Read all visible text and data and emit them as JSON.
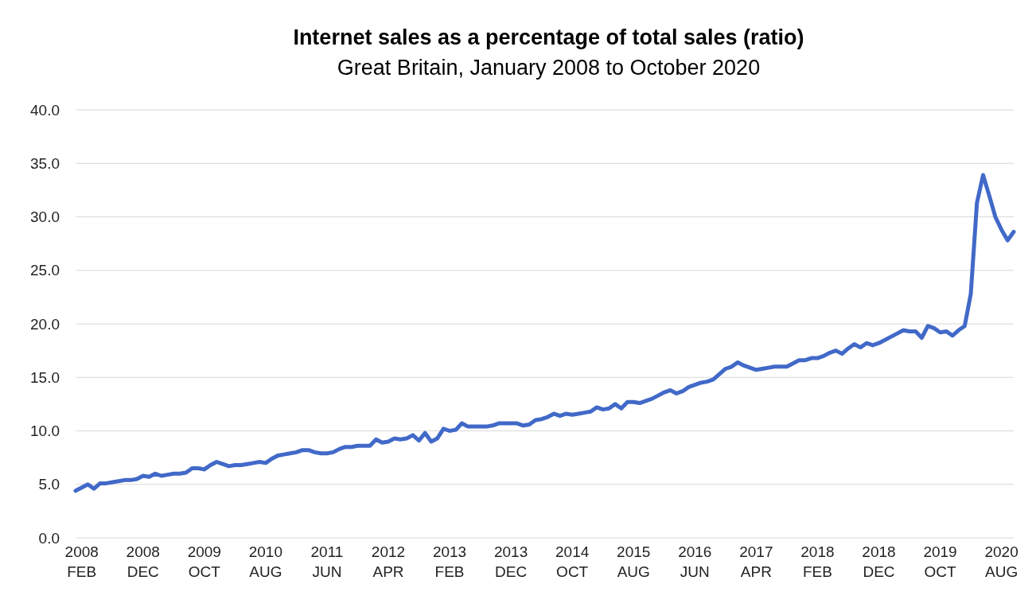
{
  "chart_data": {
    "type": "line",
    "title": "Internet sales as a percentage of total sales (ratio)",
    "subtitle": "Great Britain, January 2008 to October 2020",
    "categories": [
      null,
      "2008 FEB",
      null,
      null,
      null,
      null,
      null,
      null,
      null,
      null,
      null,
      "2008 DEC",
      null,
      null,
      null,
      null,
      null,
      null,
      null,
      null,
      null,
      "2009 OCT",
      null,
      null,
      null,
      null,
      null,
      null,
      null,
      null,
      null,
      "2010 AUG",
      null,
      null,
      null,
      null,
      null,
      null,
      null,
      null,
      null,
      "2011 JUN",
      null,
      null,
      null,
      null,
      null,
      null,
      null,
      null,
      null,
      "2012 APR",
      null,
      null,
      null,
      null,
      null,
      null,
      null,
      null,
      null,
      "2013 FEB",
      null,
      null,
      null,
      null,
      null,
      null,
      null,
      null,
      null,
      "2013 DEC",
      null,
      null,
      null,
      null,
      null,
      null,
      null,
      null,
      null,
      "2014 OCT",
      null,
      null,
      null,
      null,
      null,
      null,
      null,
      null,
      null,
      "2015 AUG",
      null,
      null,
      null,
      null,
      null,
      null,
      null,
      null,
      null,
      "2016 JUN",
      null,
      null,
      null,
      null,
      null,
      null,
      null,
      null,
      null,
      "2017 APR",
      null,
      null,
      null,
      null,
      null,
      null,
      null,
      null,
      null,
      "2018 FEB",
      null,
      null,
      null,
      null,
      null,
      null,
      null,
      null,
      null,
      "2018 DEC",
      null,
      null,
      null,
      null,
      null,
      null,
      null,
      null,
      null,
      "2019 OCT",
      null,
      null,
      null,
      null,
      null,
      null,
      null,
      null,
      null,
      "2020 AUG",
      null,
      null
    ],
    "series": [
      {
        "color": "#4169c8",
        "values": [
          4.4,
          4.7,
          5.0,
          4.6,
          5.1,
          5.1,
          5.2,
          5.3,
          5.4,
          5.4,
          5.5,
          5.8,
          5.7,
          6.0,
          5.8,
          5.9,
          6.0,
          6.0,
          6.1,
          6.5,
          6.5,
          6.4,
          6.8,
          7.1,
          6.9,
          6.7,
          6.8,
          6.8,
          6.9,
          7.0,
          7.1,
          7.0,
          7.4,
          7.7,
          7.8,
          7.9,
          8.0,
          8.2,
          8.2,
          8.0,
          7.9,
          7.9,
          8.0,
          8.3,
          8.5,
          8.5,
          8.6,
          8.6,
          8.6,
          9.2,
          8.9,
          9.0,
          9.3,
          9.2,
          9.3,
          9.6,
          9.1,
          9.8,
          9.0,
          9.3,
          10.2,
          10.0,
          10.1,
          10.7,
          10.4,
          10.4,
          10.4,
          10.4,
          10.5,
          10.7,
          10.7,
          10.7,
          10.7,
          10.5,
          10.6,
          11.0,
          11.1,
          11.3,
          11.6,
          11.4,
          11.6,
          11.5,
          11.6,
          11.7,
          11.8,
          12.2,
          12.0,
          12.1,
          12.5,
          12.1,
          12.7,
          12.7,
          12.6,
          12.8,
          13.0,
          13.3,
          13.6,
          13.8,
          13.5,
          13.7,
          14.1,
          14.3,
          14.5,
          14.6,
          14.8,
          15.3,
          15.8,
          16.0,
          16.4,
          16.1,
          15.9,
          15.7,
          15.8,
          15.9,
          16.0,
          16.0,
          16.0,
          16.3,
          16.6,
          16.6,
          16.8,
          16.8,
          17.0,
          17.3,
          17.5,
          17.2,
          17.7,
          18.1,
          17.8,
          18.2,
          18.0,
          18.2,
          18.5,
          18.8,
          19.1,
          19.4,
          19.3,
          19.3,
          18.7,
          19.8,
          19.6,
          19.2,
          19.3,
          18.9,
          19.4,
          19.8,
          22.8,
          31.3,
          33.9,
          32.0,
          30.0,
          28.8,
          27.8,
          28.6
        ]
      }
    ],
    "ylim": [
      0,
      40
    ],
    "yticks": [
      {
        "value": 0,
        "label": "0.0"
      },
      {
        "value": 5,
        "label": "5.0"
      },
      {
        "value": 10,
        "label": "10.0"
      },
      {
        "value": 15,
        "label": "15.0"
      },
      {
        "value": 20,
        "label": "20.0"
      },
      {
        "value": 25,
        "label": "25.0"
      },
      {
        "value": 30,
        "label": "30.0"
      },
      {
        "value": 35,
        "label": "35.0"
      },
      {
        "value": 40,
        "label": "40.0"
      }
    ],
    "grid": "y",
    "marker": "none",
    "line_style": "solid"
  }
}
